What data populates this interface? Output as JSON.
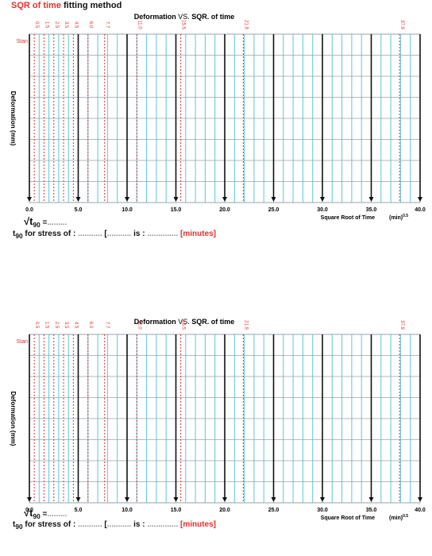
{
  "page_header": {
    "red_text": "SQR of time",
    "black_text": "fitting method"
  },
  "chart_data": [
    {
      "type": "line",
      "title_prefix": "Deformation",
      "title_vs": "VS.",
      "title_suffix": "SQR. of time",
      "ylabel": "Deformation (mm)",
      "xlabel": "Square Root of Time",
      "xunit": "(min)",
      "xunit_exp": "0.5",
      "start_label": "Stan",
      "xlim": [
        0,
        40
      ],
      "x_ticks": [
        "0.0",
        "5.0",
        "10.0",
        "15.0",
        "20.0",
        "25.0",
        "30.0",
        "35.0",
        "40.0"
      ],
      "red_time_lines": [
        {
          "x": 0.5,
          "label": "0.5"
        },
        {
          "x": 1.5,
          "label": "1.5"
        },
        {
          "x": 2.5,
          "label": "2.5"
        },
        {
          "x": 3.5,
          "label": "3.5"
        },
        {
          "x": 4.5,
          "label": "4.5"
        },
        {
          "x": 6.0,
          "label": "6.0"
        },
        {
          "x": 7.7,
          "label": "7.7"
        },
        {
          "x": 11.0,
          "label": "11.0"
        },
        {
          "x": 15.5,
          "label": "15.5"
        },
        {
          "x": 21.9,
          "label": "21.9"
        },
        {
          "x": 37.9,
          "label": "37.9"
        }
      ],
      "black_arrow_x": [
        0,
        5,
        10,
        15,
        20,
        25,
        30,
        35,
        40
      ]
    },
    {
      "type": "line",
      "title_prefix": "Deformation",
      "title_vs": "VS.",
      "title_suffix": "SQR. of time",
      "ylabel": "Deformation (mm)",
      "xlabel": "Square Root of Time",
      "xunit": "(min)",
      "xunit_exp": "0.5",
      "start_label": "Stan",
      "xlim": [
        0,
        40
      ],
      "x_ticks": [
        "0.0",
        "5.0",
        "10.0",
        "15.0",
        "20.0",
        "25.0",
        "30.0",
        "35.0",
        "40.0"
      ],
      "red_time_lines": [
        {
          "x": 0.5,
          "label": "0.5"
        },
        {
          "x": 1.5,
          "label": "1.5"
        },
        {
          "x": 2.5,
          "label": "2.5"
        },
        {
          "x": 3.5,
          "label": "3.5"
        },
        {
          "x": 4.5,
          "label": "4.5"
        },
        {
          "x": 6.0,
          "label": "6.0"
        },
        {
          "x": 7.7,
          "label": "7.7"
        },
        {
          "x": 11.0,
          "label": "11.0"
        },
        {
          "x": 15.5,
          "label": "15.5"
        },
        {
          "x": 21.9,
          "label": "21.9"
        },
        {
          "x": 37.9,
          "label": "37.9"
        }
      ],
      "black_arrow_x": [
        0,
        5,
        10,
        15,
        20,
        25,
        30,
        35,
        40
      ]
    }
  ],
  "footers": [
    {
      "sqrt_sub": "90",
      "sqrt_eq": "=",
      "sqrt_dots": ".........",
      "t90_prefix": "t",
      "t90_sub": "90",
      "t90_text": " for stress of :",
      "dots1": " ........... ",
      "bracket": "[",
      "dots2": "...........",
      "is_text": "is :",
      "dots3": " .............. ",
      "minutes": "[minutes]"
    },
    {
      "sqrt_sub": "90",
      "sqrt_eq": "=",
      "sqrt_dots": ".........",
      "t90_prefix": "t",
      "t90_sub": "90",
      "t90_text": " for stress of :",
      "dots1": " ........... ",
      "bracket": "[",
      "dots2": "...........",
      "is_text": "is :",
      "dots3": " .............. ",
      "minutes": "[minutes]"
    }
  ],
  "colors": {
    "grid_cyan": "#5bc8dc",
    "grid_gray": "#9aa3a8",
    "red": "#e0312b",
    "arrow": "#111111"
  }
}
